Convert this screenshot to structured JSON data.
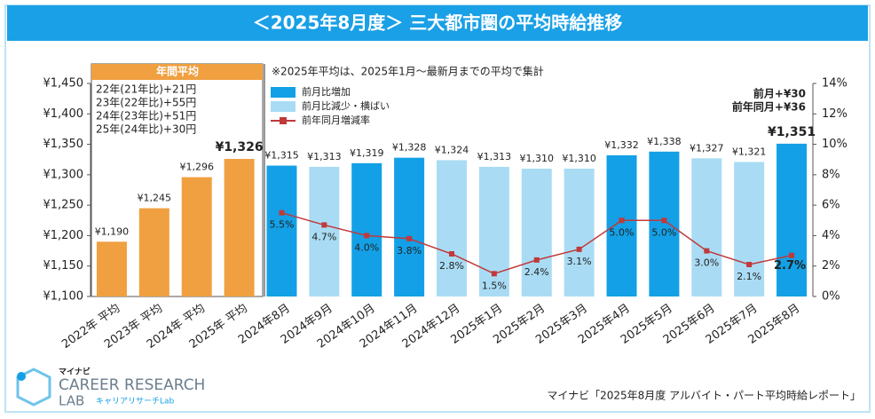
{
  "chart_data": {
    "type": "bar",
    "title": "＜2025年8月度＞ 三大都市圏の平均時給推移",
    "categories": [
      "2022年 平均",
      "2023年 平均",
      "2024年 平均",
      "2025年 平均",
      "2024年8月",
      "2024年9月",
      "2024年10月",
      "2024年11月",
      "2024年12月",
      "2025年1月",
      "2025年2月",
      "2025年3月",
      "2025年4月",
      "2025年5月",
      "2025年6月",
      "2025年7月",
      "2025年8月"
    ],
    "values": [
      1190,
      1245,
      1296,
      1326,
      1315,
      1313,
      1319,
      1328,
      1324,
      1313,
      1310,
      1310,
      1332,
      1338,
      1327,
      1321,
      1351
    ],
    "value_labels": [
      "¥1,190",
      "¥1,245",
      "¥1,296",
      "¥1,326",
      "¥1,315",
      "¥1,313",
      "¥1,319",
      "¥1,328",
      "¥1,324",
      "¥1,313",
      "¥1,310",
      "¥1,310",
      "¥1,332",
      "¥1,338",
      "¥1,327",
      "¥1,321",
      "¥1,351"
    ],
    "colors": [
      "#f0a040",
      "#f0a040",
      "#f0a040",
      "#f0a040",
      "#13a0e6",
      "#a9dcf4",
      "#13a0e6",
      "#13a0e6",
      "#a9dcf4",
      "#a9dcf4",
      "#a9dcf4",
      "#a9dcf4",
      "#13a0e6",
      "#13a0e6",
      "#a9dcf4",
      "#a9dcf4",
      "#13a0e6"
    ],
    "series": [
      {
        "name": "前月比増加",
        "color": "#13a0e6"
      },
      {
        "name": "前月比減少・横ばい",
        "color": "#a9dcf4"
      },
      {
        "name": "前年同月増減率",
        "color": "#c0393b",
        "axis": "y2",
        "type": "line",
        "values": [
          null,
          null,
          null,
          null,
          5.5,
          4.7,
          4.0,
          3.8,
          2.8,
          1.5,
          2.4,
          3.1,
          5.0,
          5.0,
          3.0,
          2.1,
          2.7
        ],
        "value_labels": [
          null,
          null,
          null,
          null,
          "5.5%",
          "4.7%",
          "4.0%",
          "3.8%",
          "2.8%",
          "1.5%",
          "2.4%",
          "3.1%",
          "5.0%",
          "5.0%",
          "3.0%",
          "2.1%",
          "2.7%"
        ]
      }
    ],
    "ylim": [
      1100,
      1450
    ],
    "yticks": [
      {
        "value": 1100,
        "label": "¥1,100"
      },
      {
        "value": 1150,
        "label": "¥1,150"
      },
      {
        "value": 1200,
        "label": "¥1,200"
      },
      {
        "value": 1250,
        "label": "¥1,250"
      },
      {
        "value": 1300,
        "label": "¥1,300"
      },
      {
        "value": 1350,
        "label": "¥1,350"
      },
      {
        "value": 1400,
        "label": "¥1,400"
      },
      {
        "value": 1450,
        "label": "¥1,450"
      }
    ],
    "y2lim": [
      0,
      14
    ],
    "y2ticks": [
      {
        "value": 0,
        "label": "0%"
      },
      {
        "value": 2,
        "label": "2%"
      },
      {
        "value": 4,
        "label": "4%"
      },
      {
        "value": 6,
        "label": "6%"
      },
      {
        "value": 8,
        "label": "8%"
      },
      {
        "value": 10,
        "label": "10%"
      },
      {
        "value": 12,
        "label": "12%"
      },
      {
        "value": 14,
        "label": "14%"
      }
    ],
    "annual_box": {
      "title": "年間平均",
      "lines": [
        "22年(21年比)+21円",
        "23年(22年比)+55円",
        "24年(23年比)+51円",
        "25年(24年比)+30円"
      ]
    },
    "note": "※2025年平均は、2025年1月～最新月までの平均で集計",
    "summary": [
      "前月+¥30",
      "前年同月+¥36"
    ],
    "source": "マイナビ「2025年8月度 アルバイト・パート平均時給レポート」",
    "logo": {
      "brand": "マイナビ",
      "name": "CAREER RESEARCH",
      "lab": "LAB",
      "sub": "キャリアリサーチLab"
    }
  }
}
